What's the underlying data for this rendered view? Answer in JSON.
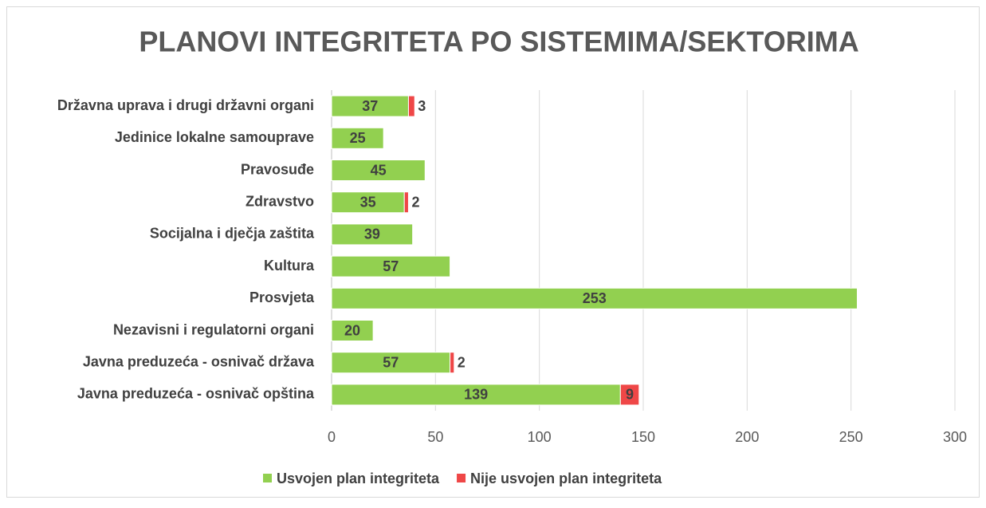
{
  "chart_data": {
    "type": "hbar_stacked",
    "title": "PLANOVI INTEGRITETA PO SISTEMIMA/SEKTORIMA",
    "categories": [
      "Državna uprava i drugi državni organi",
      "Jedinice lokalne samouprave",
      "Pravosuđe",
      "Zdravstvo",
      "Socijalna i dječja zaštita",
      "Kultura",
      "Prosvjeta",
      "Nezavisni i regulatorni organi",
      "Javna preduzeća - osnivač država",
      "Javna preduzeća - osnivač opština"
    ],
    "series": [
      {
        "name": "Usvojen plan integriteta",
        "color": "#92d050",
        "values": [
          37,
          25,
          45,
          35,
          39,
          57,
          253,
          20,
          57,
          139
        ]
      },
      {
        "name": "Nije usvojen plan integriteta",
        "color": "#ef4747",
        "values": [
          3,
          null,
          null,
          2,
          null,
          null,
          null,
          null,
          2,
          9
        ]
      }
    ],
    "xlim": [
      0,
      300
    ],
    "xticks": [
      0,
      50,
      100,
      150,
      200,
      250,
      300
    ],
    "grid": true,
    "legend": "bottom"
  }
}
